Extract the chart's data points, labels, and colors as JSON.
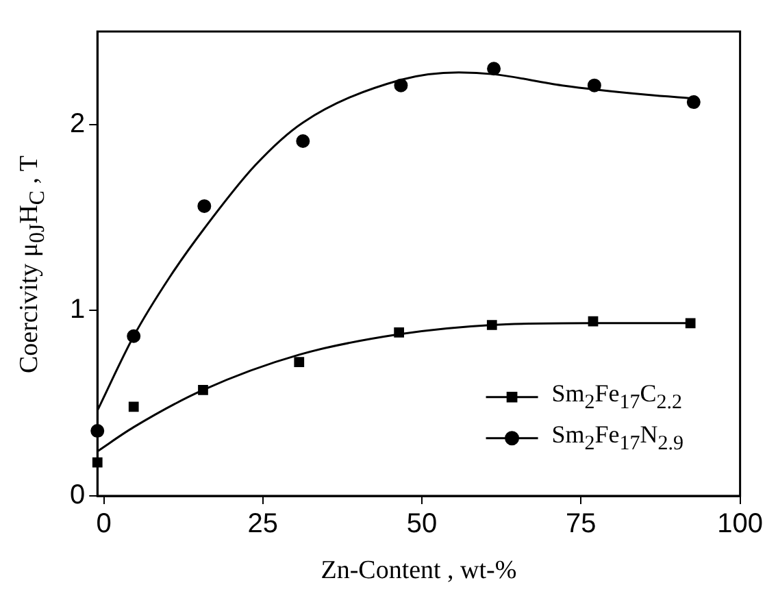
{
  "chart_data": {
    "type": "scatter",
    "xlabel": "Zn-Content ,  wt-%",
    "ylabel": "Coercivity  μ$_{0J}$H$_{C}$ ,  T",
    "xlim": [
      -1,
      100
    ],
    "xticks": [
      0,
      25,
      50,
      75,
      100
    ],
    "ylim": [
      0,
      2.5
    ],
    "yticks": [
      0,
      1,
      2
    ],
    "grid": false,
    "legend": "bottom right",
    "series": [
      {
        "name": "Sm$_{2}$Fe$_{17}$C$_{2.2}$",
        "marker": "square",
        "color": "#000000",
        "x": [
          -1,
          4.7,
          15.6,
          30.7,
          46.4,
          61,
          76.9,
          92.2
        ],
        "values": [
          0.18,
          0.48,
          0.57,
          0.72,
          0.88,
          0.92,
          0.94,
          0.93
        ]
      },
      {
        "name": "Sm$_{2}$Fe$_{17}$N$_{2.9}$",
        "marker": "circle",
        "color": "#000000",
        "x": [
          -1,
          4.7,
          15.8,
          31.3,
          46.7,
          61.3,
          77.1,
          92.7
        ],
        "values": [
          0.35,
          0.86,
          1.56,
          1.91,
          2.21,
          2.3,
          2.21,
          2.12
        ]
      },
      {
        "type": "line",
        "marker": "none",
        "line_style": "solid",
        "color": "#000000",
        "x": [
          -1,
          4.7,
          15.6,
          30.7,
          46.4,
          61,
          76.9,
          92.2
        ],
        "values": [
          0.24,
          0.37,
          0.57,
          0.76,
          0.87,
          0.92,
          0.93,
          0.93
        ]
      },
      {
        "type": "line",
        "marker": "none",
        "line_style": "solid",
        "color": "#000000",
        "x": [
          -1,
          4.7,
          10.4,
          15.8,
          23.8,
          31.3,
          46.7,
          55.8,
          61.3,
          72,
          85.3,
          92.7
        ],
        "values": [
          0.46,
          0.86,
          1.18,
          1.44,
          1.78,
          2.01,
          2.24,
          2.28,
          2.27,
          2.21,
          2.16,
          2.14
        ]
      }
    ]
  }
}
